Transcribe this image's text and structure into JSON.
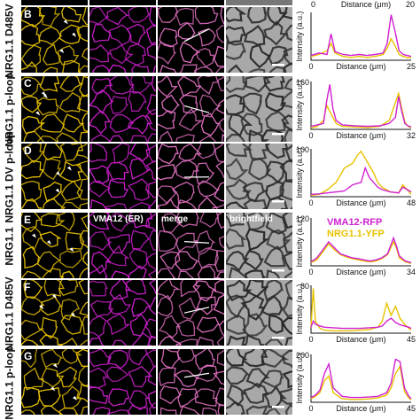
{
  "figure": {
    "channel_titles": {
      "er": "VMA12 (ER)",
      "merge": "merge",
      "brightfield": "brightfield"
    },
    "xlabel": "Distance (μm)",
    "ylabel": "Intensity (a.u.)",
    "legend": {
      "magenta": "VMA12-RFP",
      "yellow": "NRG1.1-YFP"
    },
    "colors": {
      "yfp": "#e8c200",
      "rfp": "#d020d0",
      "bf": "#9a9a9a",
      "bg": "#000000"
    }
  },
  "rows": [
    {
      "letter": "B",
      "label": "NRG1.1 D485V",
      "ytick": "",
      "xtick": "25",
      "x_zero": "0",
      "has_titles": false,
      "partial": true
    },
    {
      "letter": "C",
      "label": "NRG1.1 p-loop",
      "ytick": "160",
      "xtick": "32",
      "x_zero": "0",
      "has_titles": false
    },
    {
      "letter": "D",
      "label": "NRG1.1 DV p-loop",
      "ytick": "100",
      "xtick": "48",
      "x_zero": "0",
      "has_titles": false
    },
    {
      "letter": "E",
      "label": "NRG1.1",
      "ytick": "120",
      "xtick": "34",
      "x_zero": "0",
      "has_titles": true
    },
    {
      "letter": "F",
      "label": "NRG1.1 D485V",
      "ytick": "80",
      "xtick": "45",
      "x_zero": "0",
      "has_titles": false
    },
    {
      "letter": "G",
      "label": "NRG1.1 p-loop",
      "ytick": "200",
      "xtick": "45",
      "x_zero": "0",
      "has_titles": false
    }
  ],
  "top_strip": {
    "x_zero": "0",
    "xlabel": "Distance (μm)",
    "xtick": "20"
  },
  "chart_data": [
    {
      "type": "line",
      "title": "",
      "xlabel": "Distance (μm)",
      "ylabel": "Intensity (a.u.)",
      "xlim": [
        0,
        25
      ],
      "series": [
        {
          "name": "VMA12-RFP",
          "x": [
            0,
            2,
            4,
            5,
            6,
            8,
            10,
            12,
            14,
            16,
            18,
            19,
            20,
            21,
            22,
            23,
            24,
            25
          ],
          "values": [
            0.1,
            0.15,
            0.12,
            0.55,
            0.18,
            0.12,
            0.1,
            0.12,
            0.1,
            0.12,
            0.15,
            0.35,
            0.95,
            0.6,
            0.2,
            0.12,
            0.1,
            0.08
          ]
        },
        {
          "name": "NRG1.1-YFP",
          "x": [
            0,
            2,
            4,
            5,
            6,
            8,
            10,
            12,
            14,
            16,
            18,
            19,
            20,
            21,
            22,
            23,
            24,
            25
          ],
          "values": [
            0.08,
            0.12,
            0.2,
            0.35,
            0.15,
            0.08,
            0.06,
            0.08,
            0.06,
            0.08,
            0.12,
            0.25,
            0.45,
            0.3,
            0.12,
            0.08,
            0.06,
            0.05
          ]
        }
      ]
    },
    {
      "type": "line",
      "title": "",
      "xlabel": "Distance (μm)",
      "ylabel": "Intensity (a.u.)",
      "xlim": [
        0,
        32
      ],
      "ylim": [
        0,
        160
      ],
      "series": [
        {
          "name": "VMA12-RFP",
          "x": [
            0,
            2,
            4,
            5,
            6,
            7,
            8,
            10,
            14,
            18,
            22,
            25,
            27,
            28,
            29,
            30,
            31,
            32
          ],
          "values": [
            10,
            15,
            20,
            95,
            150,
            70,
            30,
            15,
            12,
            10,
            12,
            20,
            40,
            110,
            60,
            20,
            12,
            8
          ]
        },
        {
          "name": "NRG1.1-YFP",
          "x": [
            0,
            2,
            4,
            5,
            6,
            7,
            8,
            10,
            14,
            18,
            22,
            25,
            27,
            28,
            29,
            30,
            31,
            32
          ],
          "values": [
            5,
            10,
            30,
            80,
            60,
            40,
            20,
            10,
            8,
            6,
            10,
            30,
            90,
            120,
            70,
            25,
            10,
            5
          ]
        }
      ]
    },
    {
      "type": "line",
      "title": "",
      "xlabel": "Distance (μm)",
      "ylabel": "Intensity (a.u.)",
      "xlim": [
        0,
        48
      ],
      "ylim": [
        0,
        100
      ],
      "series": [
        {
          "name": "VMA12-RFP",
          "x": [
            0,
            4,
            8,
            12,
            16,
            20,
            24,
            26,
            28,
            30,
            32,
            34,
            38,
            42,
            44,
            46,
            48
          ],
          "values": [
            5,
            6,
            8,
            10,
            12,
            25,
            30,
            60,
            40,
            30,
            20,
            15,
            10,
            8,
            20,
            15,
            10
          ]
        },
        {
          "name": "NRG1.1-YFP",
          "x": [
            0,
            4,
            8,
            12,
            16,
            20,
            22,
            24,
            26,
            28,
            30,
            32,
            34,
            38,
            42,
            44,
            46,
            48
          ],
          "values": [
            3,
            5,
            15,
            30,
            60,
            70,
            85,
            95,
            80,
            65,
            50,
            30,
            20,
            10,
            8,
            25,
            15,
            5
          ]
        }
      ]
    },
    {
      "type": "line",
      "title": "",
      "xlabel": "Distance (μm)",
      "ylabel": "Intensity (a.u.)",
      "xlim": [
        0,
        34
      ],
      "ylim": [
        0,
        120
      ],
      "series": [
        {
          "name": "VMA12-RFP",
          "x": [
            0,
            2,
            4,
            6,
            8,
            10,
            12,
            14,
            16,
            18,
            20,
            22,
            24,
            26,
            28,
            29,
            30,
            32,
            34
          ],
          "values": [
            10,
            20,
            40,
            60,
            45,
            30,
            25,
            20,
            18,
            15,
            12,
            15,
            20,
            30,
            70,
            50,
            25,
            12,
            8
          ]
        },
        {
          "name": "NRG1.1-YFP",
          "x": [
            0,
            2,
            4,
            6,
            8,
            10,
            12,
            14,
            16,
            18,
            20,
            22,
            24,
            26,
            28,
            29,
            30,
            32,
            34
          ],
          "values": [
            8,
            15,
            35,
            55,
            40,
            28,
            22,
            18,
            15,
            12,
            10,
            12,
            18,
            28,
            60,
            45,
            20,
            10,
            6
          ]
        }
      ]
    },
    {
      "type": "line",
      "title": "",
      "xlabel": "Distance (μm)",
      "ylabel": "Intensity (a.u.)",
      "xlim": [
        0,
        45
      ],
      "ylim": [
        0,
        80
      ],
      "series": [
        {
          "name": "VMA12-RFP",
          "x": [
            0,
            1,
            2,
            4,
            6,
            10,
            14,
            18,
            22,
            26,
            30,
            32,
            34,
            36,
            38,
            40,
            42,
            44,
            45
          ],
          "values": [
            10,
            20,
            15,
            12,
            10,
            9,
            8,
            8,
            8,
            9,
            10,
            12,
            20,
            25,
            18,
            14,
            12,
            10,
            8
          ]
        },
        {
          "name": "NRG1.1-YFP",
          "x": [
            0,
            1,
            2,
            4,
            6,
            10,
            14,
            18,
            22,
            26,
            30,
            32,
            34,
            36,
            38,
            40,
            42,
            44,
            45
          ],
          "values": [
            10,
            75,
            20,
            8,
            5,
            4,
            4,
            4,
            5,
            6,
            10,
            20,
            50,
            30,
            45,
            25,
            15,
            8,
            5
          ]
        }
      ]
    },
    {
      "type": "line",
      "title": "",
      "xlabel": "Distance (μm)",
      "ylabel": "Intensity (a.u.)",
      "xlim": [
        0,
        45
      ],
      "ylim": [
        0,
        200
      ],
      "series": [
        {
          "name": "VMA12-RFP",
          "x": [
            0,
            2,
            4,
            6,
            8,
            10,
            14,
            18,
            22,
            26,
            30,
            34,
            36,
            38,
            40,
            42,
            44,
            45
          ],
          "values": [
            20,
            30,
            50,
            120,
            160,
            60,
            25,
            20,
            20,
            22,
            25,
            40,
            80,
            180,
            170,
            60,
            25,
            15
          ]
        },
        {
          "name": "NRG1.1-YFP",
          "x": [
            0,
            2,
            4,
            6,
            8,
            10,
            14,
            18,
            22,
            26,
            30,
            34,
            36,
            38,
            40,
            42,
            44,
            45
          ],
          "values": [
            15,
            25,
            40,
            90,
            110,
            40,
            15,
            12,
            12,
            14,
            18,
            30,
            60,
            120,
            150,
            45,
            18,
            10
          ]
        }
      ]
    }
  ]
}
